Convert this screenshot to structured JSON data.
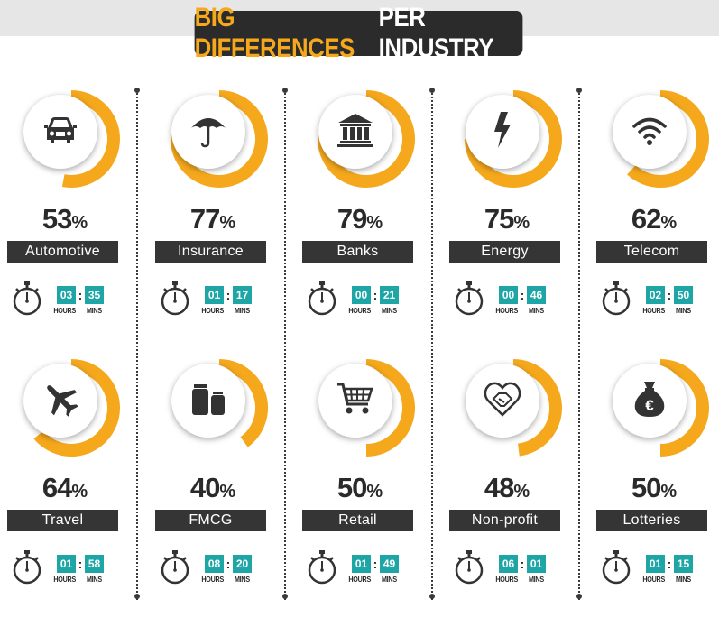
{
  "title": {
    "highlight": "BIG DIFFERENCES",
    "rest": "PER INDUSTRY"
  },
  "accent_color": "#f5a81c",
  "time_box_color": "#1ea6a7",
  "label_bg_color": "#353535",
  "percent_sign": "%",
  "units": {
    "hours": "HOURS",
    "mins": "MINS"
  },
  "industries": [
    {
      "name": "Automotive",
      "percent": "53",
      "value": 53,
      "hours": "03",
      "mins": "35",
      "icon": "car-icon"
    },
    {
      "name": "Insurance",
      "percent": "77",
      "value": 77,
      "hours": "01",
      "mins": "17",
      "icon": "umbrella-icon"
    },
    {
      "name": "Banks",
      "percent": "79",
      "value": 79,
      "hours": "00",
      "mins": "21",
      "icon": "bank-icon"
    },
    {
      "name": "Energy",
      "percent": "75",
      "value": 75,
      "hours": "00",
      "mins": "46",
      "icon": "lightning-icon"
    },
    {
      "name": "Telecom",
      "percent": "62",
      "value": 62,
      "hours": "02",
      "mins": "50",
      "icon": "wifi-icon"
    },
    {
      "name": "Travel",
      "percent": "64",
      "value": 64,
      "hours": "01",
      "mins": "58",
      "icon": "airplane-icon"
    },
    {
      "name": "FMCG",
      "percent": "40",
      "value": 40,
      "hours": "08",
      "mins": "20",
      "icon": "jars-icon"
    },
    {
      "name": "Retail",
      "percent": "50",
      "value": 50,
      "hours": "01",
      "mins": "49",
      "icon": "cart-icon"
    },
    {
      "name": "Non-profit",
      "percent": "48",
      "value": 48,
      "hours": "06",
      "mins": "01",
      "icon": "handshake-heart-icon"
    },
    {
      "name": "Lotteries",
      "percent": "50",
      "value": 50,
      "hours": "01",
      "mins": "15",
      "icon": "money-bag-icon"
    }
  ]
}
